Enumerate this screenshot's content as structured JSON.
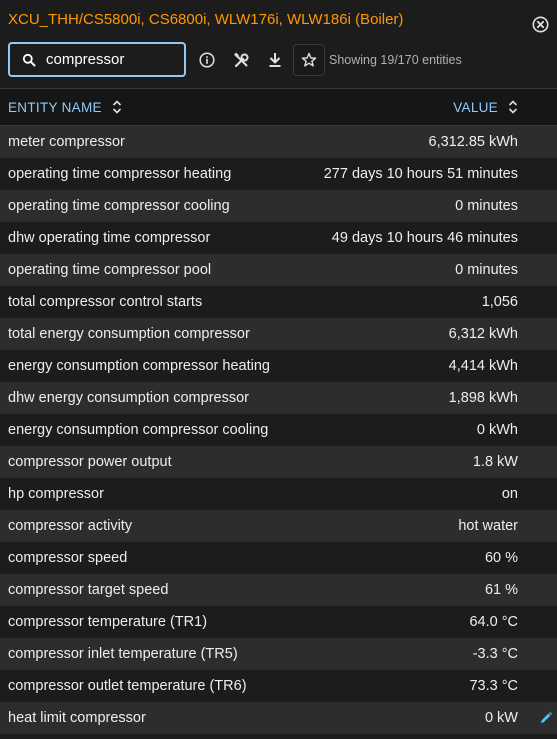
{
  "title": "XCU_THH/CS5800i, CS6800i, WLW176i, WLW186i (Boiler)",
  "icons": {
    "close": "close-circle-icon",
    "search": "search-icon",
    "info": "info-icon",
    "tools": "tools-icon",
    "download": "download-icon",
    "favorite": "star-icon",
    "sort": "sort-icon",
    "edit": "pencil-icon"
  },
  "colors": {
    "title": "#ff9800",
    "accent": "#90caf9",
    "edit": "#4fc3f7"
  },
  "search": {
    "value": "compressor",
    "placeholder": ""
  },
  "count_text": "Showing 19/170 entities",
  "table": {
    "columns": {
      "name": "ENTITY NAME",
      "value": "VALUE"
    },
    "rows": [
      {
        "name": "meter compressor",
        "value": "6,312.85 kWh"
      },
      {
        "name": "operating time compressor heating",
        "value": "277 days 10 hours 51 minutes"
      },
      {
        "name": "operating time compressor cooling",
        "value": "0 minutes"
      },
      {
        "name": "dhw operating time compressor",
        "value": "49 days 10 hours 46 minutes"
      },
      {
        "name": "operating time compressor pool",
        "value": "0 minutes"
      },
      {
        "name": "total compressor control starts",
        "value": "1,056"
      },
      {
        "name": "total energy consumption compressor",
        "value": "6,312 kWh"
      },
      {
        "name": "energy consumption compressor heating",
        "value": "4,414 kWh"
      },
      {
        "name": "dhw energy consumption compressor",
        "value": "1,898 kWh"
      },
      {
        "name": "energy consumption compressor cooling",
        "value": "0 kWh"
      },
      {
        "name": "compressor power output",
        "value": "1.8 kW"
      },
      {
        "name": "hp compressor",
        "value": "on"
      },
      {
        "name": "compressor activity",
        "value": "hot water"
      },
      {
        "name": "compressor speed",
        "value": "60 %"
      },
      {
        "name": "compressor target speed",
        "value": "61 %"
      },
      {
        "name": "compressor temperature (TR1)",
        "value": "64.0 °C"
      },
      {
        "name": "compressor inlet temperature (TR5)",
        "value": "-3.3 °C"
      },
      {
        "name": "compressor outlet temperature (TR6)",
        "value": "73.3 °C"
      },
      {
        "name": "heat limit compressor",
        "value": "0 kW",
        "editable": true
      }
    ]
  }
}
